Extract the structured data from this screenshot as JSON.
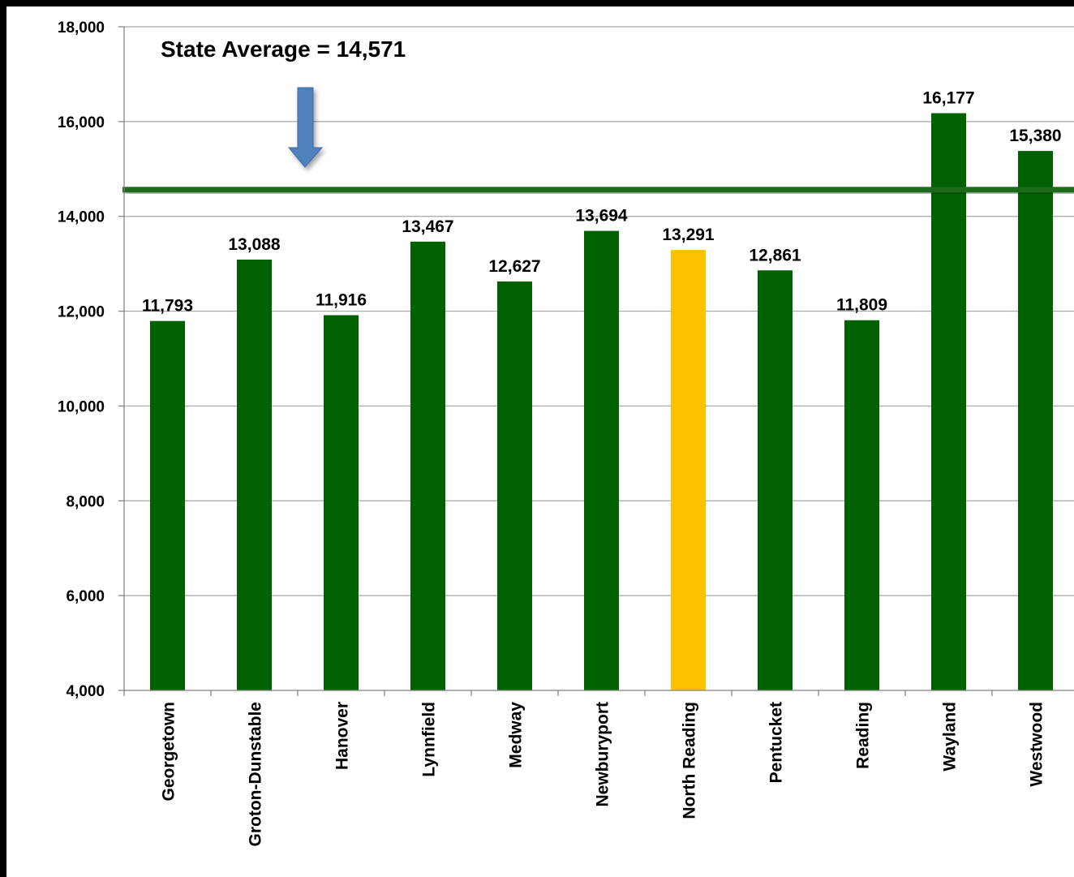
{
  "chart_data": {
    "type": "bar",
    "title": "",
    "xlabel": "",
    "ylabel": "",
    "categories": [
      "Georgetown",
      "Groton-Dunstable",
      "Hanover",
      "Lynnfield",
      "Medway",
      "Newburyport",
      "North Reading",
      "Pentucket",
      "Reading",
      "Wayland",
      "Westwood"
    ],
    "values": [
      11793,
      13088,
      11916,
      13467,
      12627,
      13694,
      13291,
      12861,
      11809,
      16177,
      15380
    ],
    "value_labels": [
      "11,793",
      "13,088",
      "11,916",
      "13,467",
      "12,627",
      "13,694",
      "13,291",
      "12,861",
      "11,809",
      "16,177",
      "15,380"
    ],
    "highlight_category": "North Reading",
    "ylim": [
      4000,
      18000
    ],
    "yticks": [
      4000,
      6000,
      8000,
      10000,
      12000,
      14000,
      16000,
      18000
    ],
    "ytick_labels": [
      "4,000",
      "6,000",
      "8,000",
      "10,000",
      "12,000",
      "14,000",
      "16,000",
      "18,000"
    ],
    "grid": true,
    "legend": "none",
    "reference_line": {
      "value": 14571,
      "label": "State Average = 14,571"
    },
    "colors": {
      "bar": "#006100",
      "highlight": "#ffc000",
      "reference_line": "#1e6b1e",
      "arrow": "#4f81bd",
      "grid": "#a6a6a6"
    }
  }
}
